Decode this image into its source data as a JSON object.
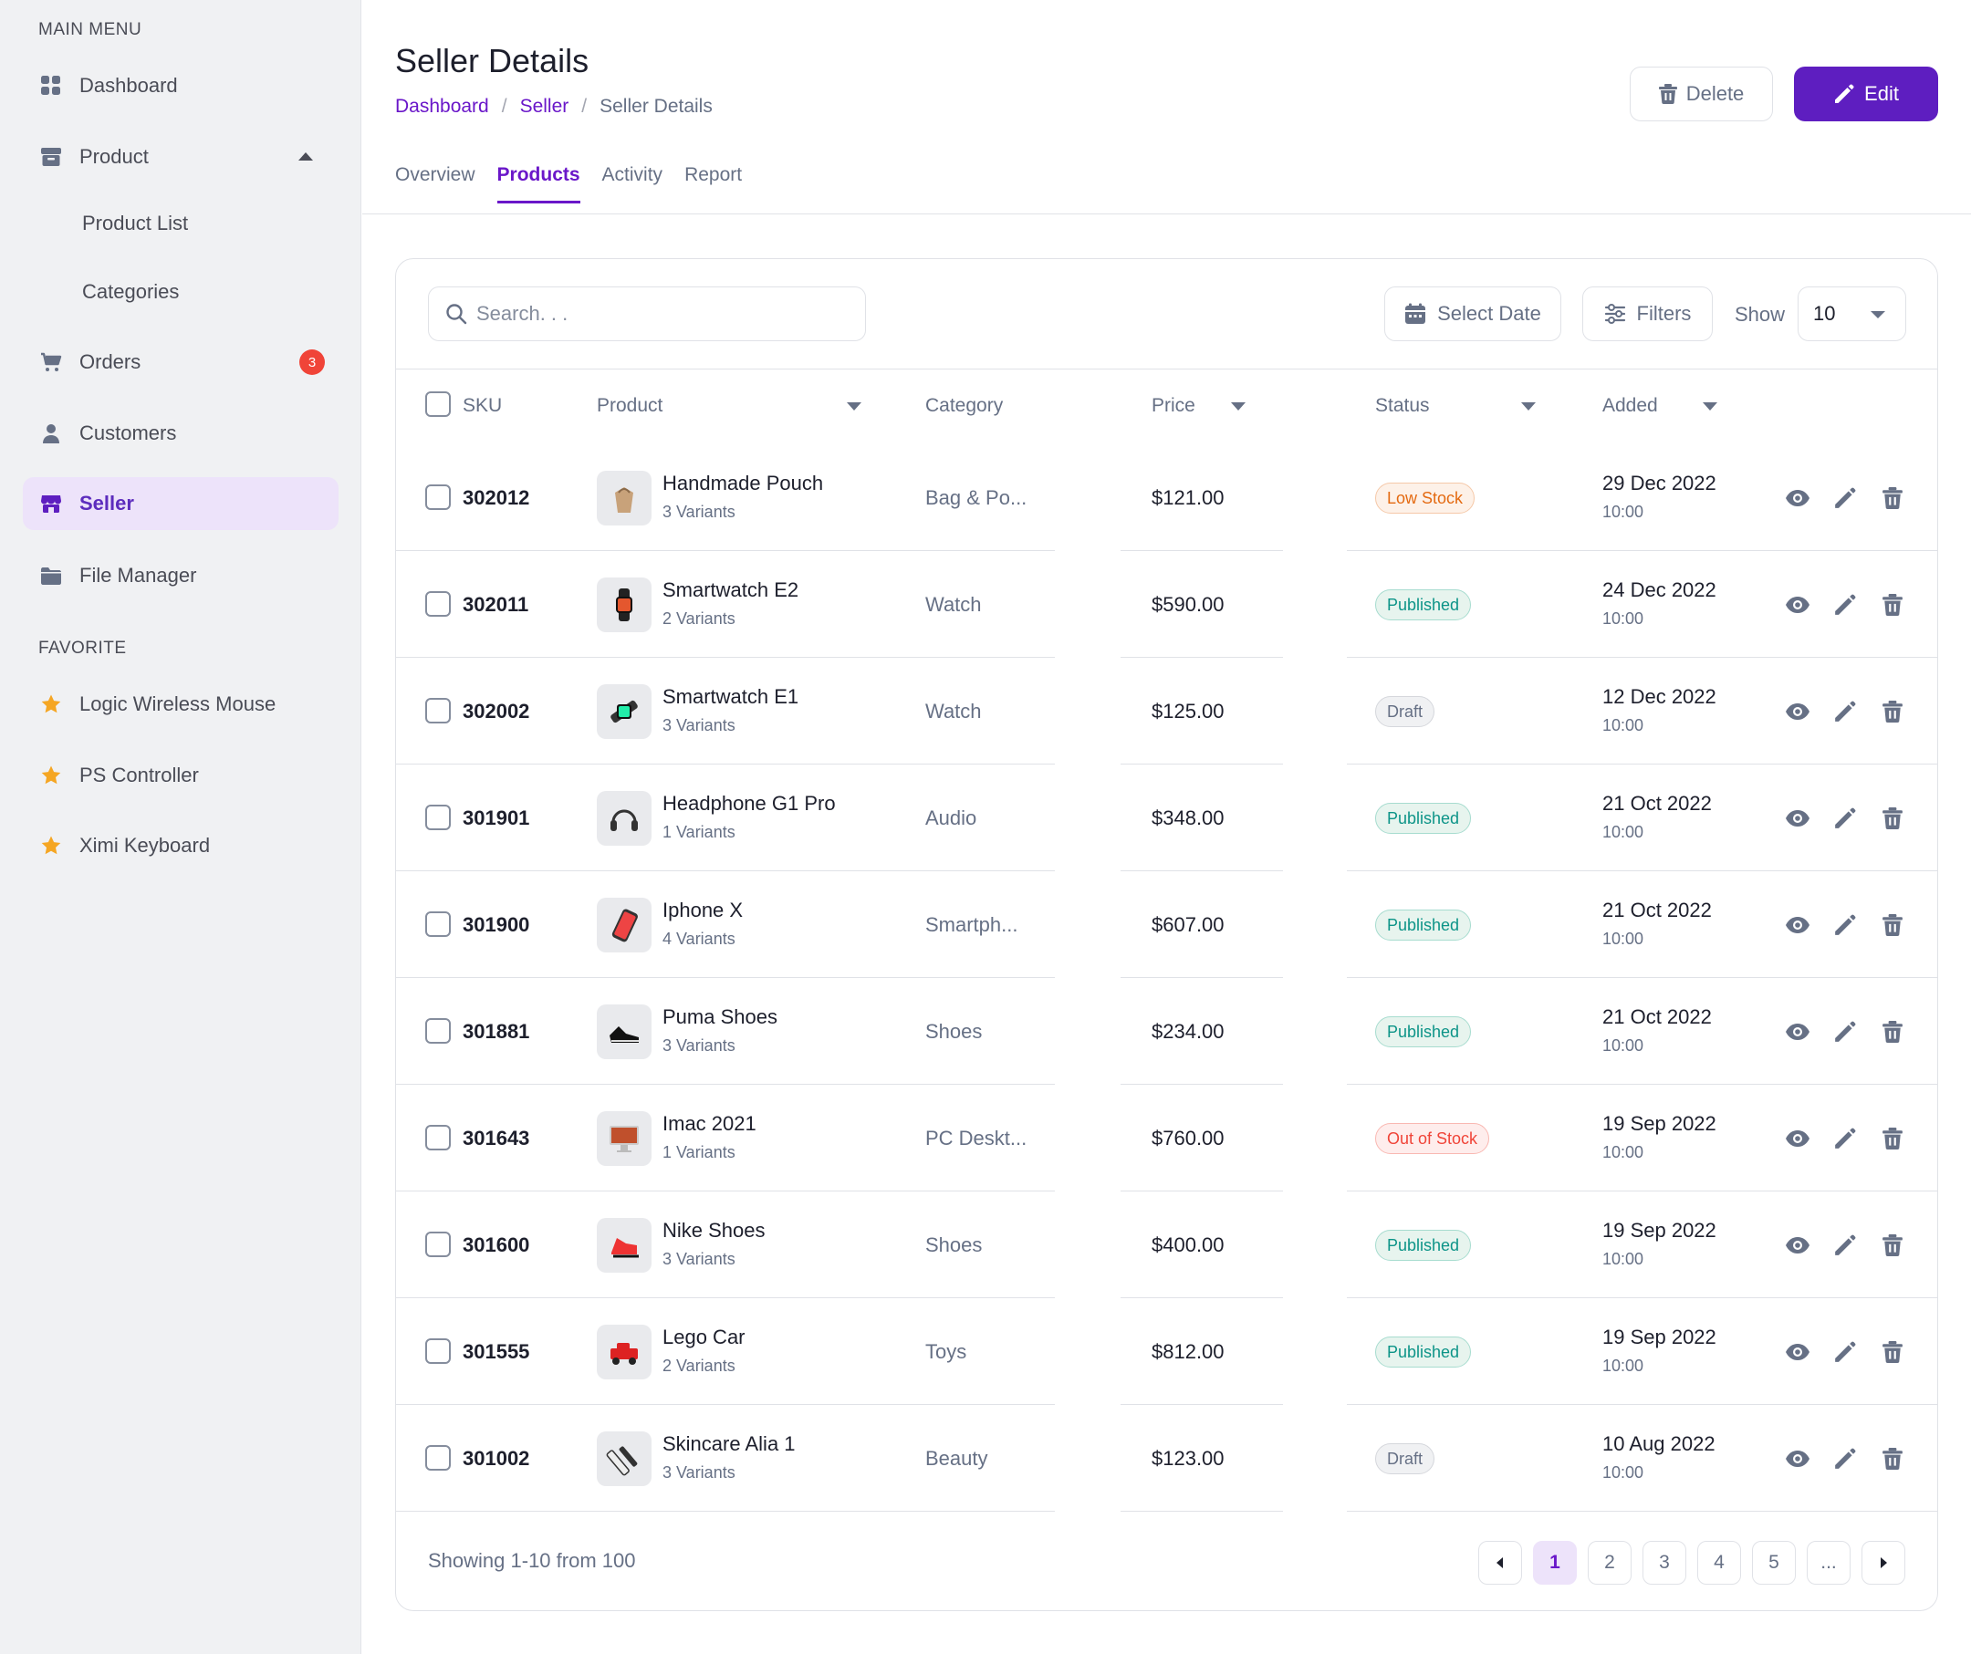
{
  "sidebar": {
    "main_menu_label": "MAIN MENU",
    "favorite_label": "FAVORITE",
    "items": [
      {
        "label": "Dashboard",
        "icon": "dashboard-icon"
      },
      {
        "label": "Product",
        "icon": "box-icon"
      },
      {
        "label": "Orders",
        "icon": "cart-icon",
        "badge": "3"
      },
      {
        "label": "Customers",
        "icon": "user-icon"
      },
      {
        "label": "Seller",
        "icon": "store-icon",
        "active": true
      },
      {
        "label": "File Manager",
        "icon": "folder-icon"
      }
    ],
    "product_sub": [
      "Product List",
      "Categories"
    ],
    "favorites": [
      "Logic Wireless Mouse",
      "PS Controller",
      "Ximi Keyboard"
    ]
  },
  "header": {
    "title": "Seller Details",
    "breadcrumb": [
      "Dashboard",
      "Seller",
      "Seller Details"
    ],
    "delete_label": "Delete",
    "edit_label": "Edit",
    "tabs": [
      "Overview",
      "Products",
      "Activity",
      "Report"
    ],
    "active_tab": "Products"
  },
  "toolbar": {
    "search_placeholder": "Search. . .",
    "select_date_label": "Select Date",
    "filters_label": "Filters",
    "show_label": "Show",
    "show_value": "10"
  },
  "table": {
    "columns": [
      "SKU",
      "Product",
      "Category",
      "Price",
      "Status",
      "Added"
    ],
    "rows": [
      {
        "sku": "302012",
        "name": "Handmade Pouch",
        "variants": "3 Variants",
        "category": "Bag & Po...",
        "price": "$121.00",
        "status": "Low Stock",
        "date": "29 Dec 2022",
        "time": "10:00"
      },
      {
        "sku": "302011",
        "name": "Smartwatch E2",
        "variants": "2 Variants",
        "category": "Watch",
        "price": "$590.00",
        "status": "Published",
        "date": "24 Dec 2022",
        "time": "10:00"
      },
      {
        "sku": "302002",
        "name": "Smartwatch E1",
        "variants": "3 Variants",
        "category": "Watch",
        "price": "$125.00",
        "status": "Draft",
        "date": "12 Dec 2022",
        "time": "10:00"
      },
      {
        "sku": "301901",
        "name": "Headphone G1 Pro",
        "variants": "1 Variants",
        "category": "Audio",
        "price": "$348.00",
        "status": "Published",
        "date": "21 Oct 2022",
        "time": "10:00"
      },
      {
        "sku": "301900",
        "name": "Iphone X",
        "variants": "4 Variants",
        "category": "Smartph...",
        "price": "$607.00",
        "status": "Published",
        "date": "21 Oct 2022",
        "time": "10:00"
      },
      {
        "sku": "301881",
        "name": "Puma Shoes",
        "variants": "3 Variants",
        "category": "Shoes",
        "price": "$234.00",
        "status": "Published",
        "date": "21 Oct 2022",
        "time": "10:00"
      },
      {
        "sku": "301643",
        "name": "Imac 2021",
        "variants": "1 Variants",
        "category": "PC Deskt...",
        "price": "$760.00",
        "status": "Out of Stock",
        "date": "19 Sep 2022",
        "time": "10:00"
      },
      {
        "sku": "301600",
        "name": "Nike Shoes",
        "variants": "3 Variants",
        "category": "Shoes",
        "price": "$400.00",
        "status": "Published",
        "date": "19 Sep 2022",
        "time": "10:00"
      },
      {
        "sku": "301555",
        "name": "Lego Car",
        "variants": "2 Variants",
        "category": "Toys",
        "price": "$812.00",
        "status": "Published",
        "date": "19 Sep 2022",
        "time": "10:00"
      },
      {
        "sku": "301002",
        "name": "Skincare Alia 1",
        "variants": "3 Variants",
        "category": "Beauty",
        "price": "$123.00",
        "status": "Draft",
        "date": "10 Aug 2022",
        "time": "10:00"
      }
    ]
  },
  "footer": {
    "showing_text": "Showing 1-10 from 100",
    "pages": [
      "1",
      "2",
      "3",
      "4",
      "5",
      "..."
    ],
    "current_page": "1"
  },
  "colors": {
    "accent": "#5e1ec0",
    "sidebar_bg": "#f0f1f3",
    "badge_red": "#f04438",
    "star": "#f5a623"
  }
}
